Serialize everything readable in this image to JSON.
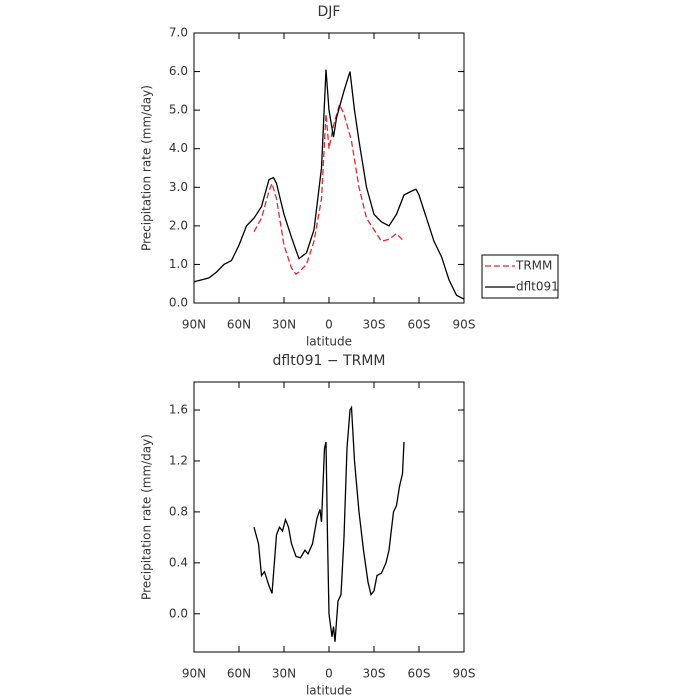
{
  "chart_data": [
    {
      "type": "line",
      "title": "DJF",
      "xlabel": "latitude",
      "ylabel": "Precipitation rate (mm/day)",
      "xlim": [
        90,
        -90
      ],
      "xticks": [
        {
          "value": 90,
          "label": "90N"
        },
        {
          "value": 60,
          "label": "60N"
        },
        {
          "value": 30,
          "label": "30N"
        },
        0,
        {
          "value": -30,
          "label": "30S"
        },
        {
          "value": -60,
          "label": "60S"
        },
        {
          "value": -90,
          "label": "90S"
        }
      ],
      "ylim": [
        0,
        7
      ],
      "yticks": [
        {
          "value": 0,
          "label": "0.0"
        },
        {
          "value": 1,
          "label": "1.0"
        },
        {
          "value": 2,
          "label": "2.0"
        },
        {
          "value": 3,
          "label": "3.0"
        },
        {
          "value": 4,
          "label": "4.0"
        },
        {
          "value": 5,
          "label": "5.0"
        },
        {
          "value": 6,
          "label": "6.0"
        },
        {
          "value": 7,
          "label": "7.0"
        }
      ],
      "legend": "right",
      "series": [
        {
          "name": "TRMM",
          "color": "#e8262a",
          "linestyle": "dashed",
          "x": [
            50,
            45,
            40,
            38,
            35,
            30,
            25,
            22,
            20,
            15,
            10,
            5,
            2,
            0,
            -3,
            -7,
            -10,
            -15,
            -20,
            -25,
            -30,
            -35,
            -40,
            -45,
            -50
          ],
          "values": [
            1.85,
            2.2,
            2.9,
            3.1,
            2.7,
            1.5,
            0.9,
            0.75,
            0.8,
            1.0,
            1.6,
            2.7,
            4.9,
            4.0,
            4.6,
            5.15,
            4.9,
            4.2,
            3.0,
            2.2,
            1.9,
            1.6,
            1.65,
            1.8,
            1.6
          ]
        },
        {
          "name": "dflt091",
          "color": "#000000",
          "linestyle": "solid",
          "x": [
            90,
            85,
            80,
            75,
            70,
            65,
            60,
            55,
            50,
            45,
            40,
            37,
            35,
            30,
            25,
            20,
            15,
            10,
            5,
            2,
            0,
            -3,
            -5,
            -10,
            -14,
            -17,
            -20,
            -25,
            -30,
            -35,
            -40,
            -45,
            -50,
            -55,
            -58,
            -60,
            -65,
            -70,
            -75,
            -80,
            -85,
            -90
          ],
          "values": [
            0.55,
            0.6,
            0.65,
            0.8,
            1.0,
            1.1,
            1.5,
            2.0,
            2.2,
            2.5,
            3.2,
            3.25,
            3.1,
            2.3,
            1.7,
            1.15,
            1.3,
            1.9,
            3.5,
            6.05,
            5.0,
            4.3,
            4.8,
            5.5,
            6.0,
            5.0,
            4.2,
            3.0,
            2.3,
            2.1,
            2.0,
            2.3,
            2.8,
            2.9,
            2.95,
            2.8,
            2.2,
            1.6,
            1.2,
            0.6,
            0.2,
            0.1
          ]
        }
      ]
    },
    {
      "type": "line",
      "title": "dflt091 − TRMM",
      "xlabel": "latitude",
      "ylabel": "Precipitation rate (mm/day)",
      "xlim": [
        90,
        -90
      ],
      "xticks": [
        {
          "value": 90,
          "label": "90N"
        },
        {
          "value": 60,
          "label": "60N"
        },
        {
          "value": 30,
          "label": "30N"
        },
        0,
        {
          "value": -30,
          "label": "30S"
        },
        {
          "value": -60,
          "label": "60S"
        },
        {
          "value": -90,
          "label": "90S"
        }
      ],
      "ylim": [
        -0.3,
        1.82
      ],
      "yticks": [
        {
          "value": 0,
          "label": "0.0"
        },
        0.4,
        0.8,
        1.2,
        1.6
      ],
      "series": [
        {
          "color": "#000000",
          "linestyle": "solid",
          "x": [
            50,
            47,
            45,
            43,
            40,
            38,
            35,
            33,
            31,
            29,
            27,
            25,
            22,
            19,
            16,
            14,
            11,
            8,
            6,
            5,
            3,
            2,
            1,
            0,
            -2,
            -3,
            -4,
            -6,
            -8,
            -10,
            -12,
            -14,
            -15,
            -17,
            -20,
            -23,
            -26,
            -28,
            -30,
            -32,
            -35,
            -38,
            -40,
            -43,
            -45,
            -47,
            -49,
            -50
          ],
          "values": [
            0.68,
            0.55,
            0.3,
            0.33,
            0.22,
            0.16,
            0.62,
            0.68,
            0.65,
            0.74,
            0.68,
            0.55,
            0.45,
            0.44,
            0.5,
            0.47,
            0.55,
            0.75,
            0.82,
            0.72,
            1.3,
            1.35,
            0.6,
            0.0,
            -0.18,
            -0.1,
            -0.22,
            0.1,
            0.15,
            0.6,
            1.3,
            1.6,
            1.62,
            1.2,
            0.8,
            0.5,
            0.25,
            0.15,
            0.18,
            0.3,
            0.32,
            0.4,
            0.5,
            0.8,
            0.85,
            1.0,
            1.1,
            1.35
          ]
        }
      ]
    }
  ]
}
